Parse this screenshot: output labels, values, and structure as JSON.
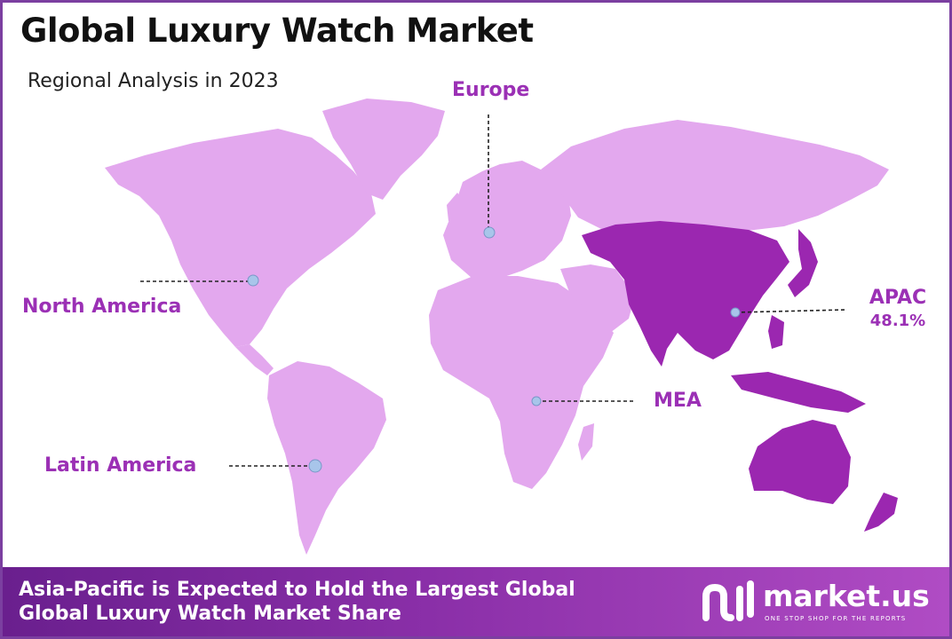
{
  "title": "Global Luxury Watch Market",
  "subtitle": "Regional Analysis in 2023",
  "regions": {
    "north_america": {
      "label": "North America"
    },
    "europe": {
      "label": "Europe"
    },
    "apac": {
      "label": "APAC",
      "share": "48.1%"
    },
    "mea": {
      "label": "MEA"
    },
    "latin_america": {
      "label": "Latin America"
    }
  },
  "colors": {
    "highlight_region": "#9b27b0",
    "other_regions": "#e3a8ee",
    "label_text": "#9b30b5",
    "marker": "#a8c5ea",
    "border": "#7b3fa0"
  },
  "footer": {
    "line1": "Asia-Pacific is Expected to Hold the Largest Global",
    "line2": "Global Luxury Watch Market Share"
  },
  "brand": {
    "name": "market.us",
    "tagline": "ONE STOP SHOP FOR THE REPORTS"
  }
}
